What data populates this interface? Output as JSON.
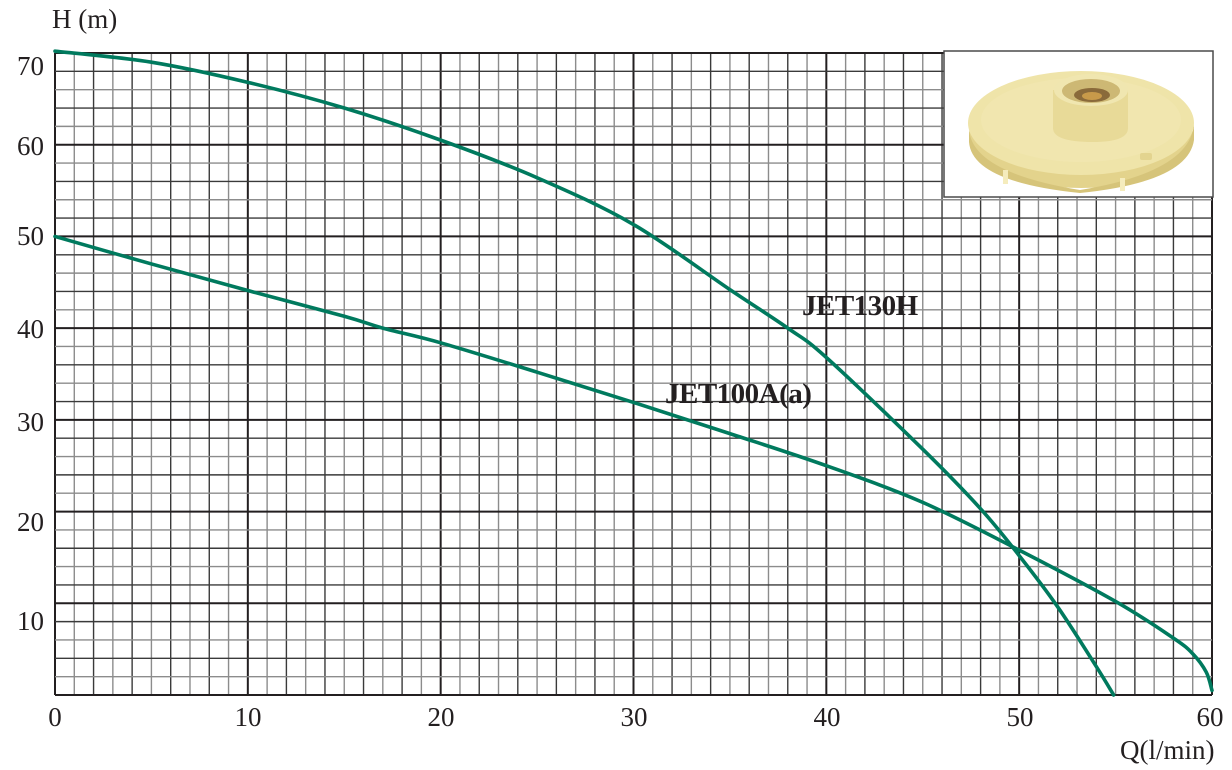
{
  "chart_data": {
    "type": "line",
    "title": "",
    "xlabel": "Q(l/min)",
    "ylabel": "H (m)",
    "xlim": [
      0,
      60
    ],
    "ylim": [
      0,
      70
    ],
    "x_ticks": [
      0,
      10,
      20,
      30,
      40,
      50,
      60
    ],
    "y_ticks": [
      10,
      20,
      30,
      40,
      50,
      60,
      70
    ],
    "grid": true,
    "grid_minor": {
      "x_step": 1,
      "y_step": 2
    },
    "legend": "inline labels on curves",
    "series": [
      {
        "name": "JET130H",
        "color": "#007a5e",
        "x": [
          0,
          5,
          10,
          15,
          20,
          25,
          30,
          35,
          38,
          40,
          45,
          48,
          50,
          52,
          54,
          54.9
        ],
        "y": [
          70.2,
          69.0,
          66.8,
          64.0,
          60.5,
          56.4,
          51.3,
          44.2,
          40.0,
          36.8,
          26.8,
          20.3,
          15.2,
          9.6,
          3.1,
          0
        ]
      },
      {
        "name": "JET100A(a)",
        "color": "#007a5e",
        "x": [
          0,
          5,
          10,
          15,
          17,
          20,
          25,
          30,
          35,
          40,
          45,
          50,
          55,
          58,
          59,
          59.7,
          60
        ],
        "y": [
          50,
          47,
          44.1,
          41.3,
          40,
          38.4,
          35.2,
          31.9,
          28.5,
          25.0,
          21.0,
          15.8,
          10.2,
          6.2,
          4.5,
          2.5,
          0.5
        ]
      }
    ],
    "annotations": [
      {
        "text": "JET130H",
        "x": 38.6,
        "y": 41.5
      },
      {
        "text": "JET100A(a)",
        "x": 31.6,
        "y": 33.0
      }
    ],
    "inset": "impeller photo (top-right)"
  },
  "labels": {
    "y_axis": "H (m)",
    "x_axis": "Q(l/min)",
    "y_ticks": [
      "70",
      "60",
      "50",
      "40",
      "30",
      "20",
      "10"
    ],
    "x_ticks": [
      "0",
      "10",
      "20",
      "30",
      "40",
      "50",
      "60"
    ],
    "series_a": "JET130H",
    "series_b": "JET100A(a)"
  },
  "colors": {
    "curve": "#007a5e",
    "grid_major": "#231f20",
    "grid_minor_dark": "#3a3a3a",
    "grid_minor_light": "#8c8c8c",
    "impeller": "#efe3a4"
  }
}
